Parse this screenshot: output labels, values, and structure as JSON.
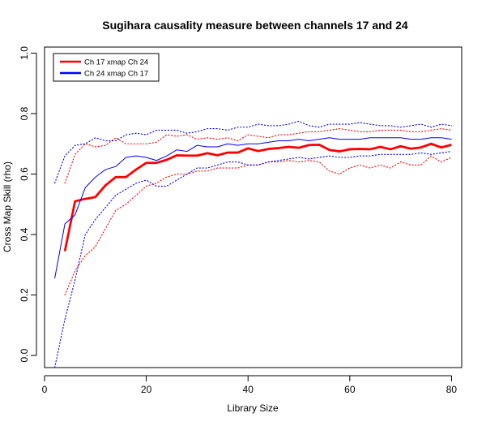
{
  "chart_data": {
    "type": "line",
    "title": "Sugihara causality measure between channels  17 and 24",
    "xlabel": "Library Size",
    "ylabel": "Cross Map Skill (rho)",
    "xlim": [
      0,
      82
    ],
    "ylim": [
      -0.04,
      1.02
    ],
    "xticks": [
      0,
      20,
      40,
      60,
      80
    ],
    "yticks": [
      0.0,
      0.2,
      0.4,
      0.6,
      0.8,
      1.0
    ],
    "xtick_labels": [
      "0",
      "20",
      "40",
      "60",
      "80"
    ],
    "ytick_labels": [
      "0.0",
      "0.2",
      "0.4",
      "0.6",
      "0.8",
      "1.0"
    ],
    "grid": false,
    "legend_position": "top-left",
    "series": [
      {
        "name": "Ch 17 xmap Ch 24",
        "color": "#ff0000",
        "x": [
          4,
          6,
          8,
          10,
          12,
          14,
          16,
          18,
          20,
          22,
          24,
          26,
          28,
          30,
          32,
          34,
          36,
          38,
          40,
          42,
          44,
          46,
          48,
          50,
          52,
          54,
          56,
          58,
          60,
          62,
          64,
          66,
          68,
          70,
          72,
          74,
          76,
          78,
          80
        ],
        "mean": [
          0.345,
          0.51,
          0.518,
          0.524,
          0.563,
          0.59,
          0.59,
          0.615,
          0.637,
          0.637,
          0.647,
          0.662,
          0.661,
          0.661,
          0.669,
          0.662,
          0.671,
          0.671,
          0.685,
          0.676,
          0.683,
          0.686,
          0.69,
          0.687,
          0.696,
          0.697,
          0.68,
          0.675,
          0.682,
          0.683,
          0.682,
          0.69,
          0.682,
          0.692,
          0.684,
          0.688,
          0.7,
          0.688,
          0.697
        ],
        "upper": [
          0.57,
          0.665,
          0.7,
          0.69,
          0.695,
          0.72,
          0.7,
          0.7,
          0.7,
          0.705,
          0.73,
          0.725,
          0.73,
          0.715,
          0.72,
          0.715,
          0.72,
          0.71,
          0.73,
          0.725,
          0.72,
          0.73,
          0.73,
          0.735,
          0.74,
          0.74,
          0.745,
          0.75,
          0.745,
          0.74,
          0.74,
          0.745,
          0.745,
          0.745,
          0.74,
          0.74,
          0.745,
          0.75,
          0.745
        ],
        "lower": [
          0.2,
          0.28,
          0.33,
          0.36,
          0.42,
          0.48,
          0.5,
          0.53,
          0.56,
          0.57,
          0.59,
          0.6,
          0.6,
          0.61,
          0.61,
          0.62,
          0.62,
          0.62,
          0.63,
          0.63,
          0.64,
          0.64,
          0.645,
          0.64,
          0.645,
          0.64,
          0.61,
          0.6,
          0.62,
          0.63,
          0.62,
          0.63,
          0.62,
          0.64,
          0.63,
          0.63,
          0.66,
          0.64,
          0.655
        ]
      },
      {
        "name": "Ch 24  xmap Ch 17",
        "color": "#0000ff",
        "x": [
          2,
          4,
          6,
          8,
          10,
          12,
          14,
          16,
          18,
          20,
          22,
          24,
          26,
          28,
          30,
          32,
          34,
          36,
          38,
          40,
          42,
          44,
          46,
          48,
          50,
          52,
          54,
          56,
          58,
          60,
          62,
          64,
          66,
          68,
          70,
          72,
          74,
          76,
          78,
          80
        ],
        "mean": [
          0.255,
          0.435,
          0.465,
          0.555,
          0.59,
          0.615,
          0.625,
          0.655,
          0.66,
          0.655,
          0.645,
          0.66,
          0.68,
          0.675,
          0.695,
          0.69,
          0.69,
          0.7,
          0.695,
          0.7,
          0.7,
          0.705,
          0.71,
          0.71,
          0.715,
          0.71,
          0.715,
          0.72,
          0.715,
          0.715,
          0.715,
          0.72,
          0.72,
          0.72,
          0.72,
          0.715,
          0.715,
          0.72,
          0.72,
          0.715
        ],
        "upper": [
          0.57,
          0.66,
          0.695,
          0.7,
          0.72,
          0.71,
          0.71,
          0.73,
          0.735,
          0.73,
          0.745,
          0.745,
          0.745,
          0.735,
          0.74,
          0.75,
          0.75,
          0.745,
          0.755,
          0.755,
          0.765,
          0.76,
          0.76,
          0.765,
          0.775,
          0.76,
          0.755,
          0.765,
          0.765,
          0.765,
          0.77,
          0.765,
          0.76,
          0.76,
          0.755,
          0.76,
          0.765,
          0.755,
          0.765,
          0.76
        ],
        "lower": [
          -0.04,
          0.12,
          0.25,
          0.4,
          0.45,
          0.49,
          0.53,
          0.55,
          0.57,
          0.58,
          0.56,
          0.56,
          0.58,
          0.6,
          0.62,
          0.62,
          0.63,
          0.64,
          0.64,
          0.63,
          0.63,
          0.64,
          0.645,
          0.65,
          0.655,
          0.65,
          0.655,
          0.66,
          0.655,
          0.655,
          0.66,
          0.66,
          0.665,
          0.665,
          0.665,
          0.665,
          0.67,
          0.665,
          0.67,
          0.675
        ]
      }
    ]
  }
}
